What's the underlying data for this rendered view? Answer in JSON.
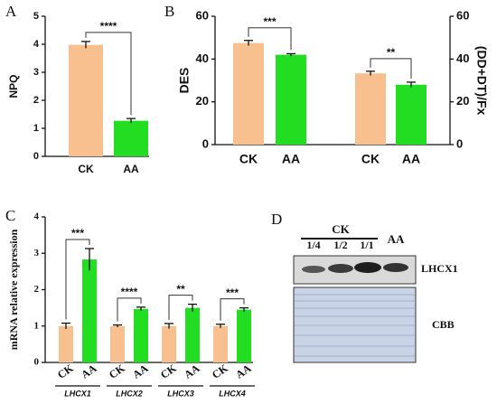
{
  "chart_data": [
    {
      "type": "bar",
      "panel": "A",
      "ylabel": "NPQ",
      "categories": [
        "CK",
        "AA"
      ],
      "values": [
        3.98,
        1.27
      ],
      "errors": [
        0.12,
        0.08
      ],
      "color": [
        "#f9c08f",
        "#22dd22"
      ],
      "ylim": [
        0,
        5
      ],
      "yticks": [
        0,
        1,
        2,
        3,
        4,
        5
      ],
      "significance": [
        "****"
      ]
    },
    {
      "type": "bar",
      "panel": "B",
      "ylabel": "DES",
      "y2label": "(DD+DT)/Fx",
      "categories": [
        "CK",
        "AA",
        "CK",
        "AA"
      ],
      "values": [
        47.5,
        42,
        33.3,
        28
      ],
      "errors": [
        1.2,
        0.5,
        1.0,
        1.2
      ],
      "color": [
        "#f9c08f",
        "#22dd22",
        "#f9c08f",
        "#22dd22"
      ],
      "axis": [
        "y",
        "y",
        "y2",
        "y2"
      ],
      "ylim": [
        0,
        60
      ],
      "yticks": [
        0,
        20,
        40,
        60
      ],
      "y2lim": [
        0,
        60
      ],
      "y2ticks": [
        0,
        20,
        40,
        60
      ],
      "significance": [
        "***",
        "**"
      ]
    },
    {
      "type": "bar",
      "panel": "C",
      "ylabel": "mRNA relative expression",
      "groups": [
        "LHCX1",
        "LHCX2",
        "LHCX3",
        "LHCX4"
      ],
      "categories": [
        "CK",
        "AA",
        "CK",
        "AA",
        "CK",
        "AA",
        "CK",
        "AA"
      ],
      "values": [
        1.0,
        2.83,
        1.0,
        1.47,
        1.0,
        1.5,
        1.0,
        1.45
      ],
      "errors": [
        0.08,
        0.3,
        0.03,
        0.05,
        0.07,
        0.1,
        0.05,
        0.05
      ],
      "color": [
        "#f9c08f",
        "#22dd22",
        "#f9c08f",
        "#22dd22",
        "#f9c08f",
        "#22dd22",
        "#f9c08f",
        "#22dd22"
      ],
      "ylim": [
        0,
        4
      ],
      "yticks": [
        0,
        1,
        2,
        3,
        4
      ],
      "significance": [
        "***",
        "****",
        "**",
        "***"
      ]
    }
  ],
  "blot": {
    "panel": "D",
    "group": "CK",
    "lanes": [
      "1/4",
      "1/2",
      "1/1"
    ],
    "sample": "AA",
    "band": "LHCX1",
    "stain": "CBB"
  }
}
